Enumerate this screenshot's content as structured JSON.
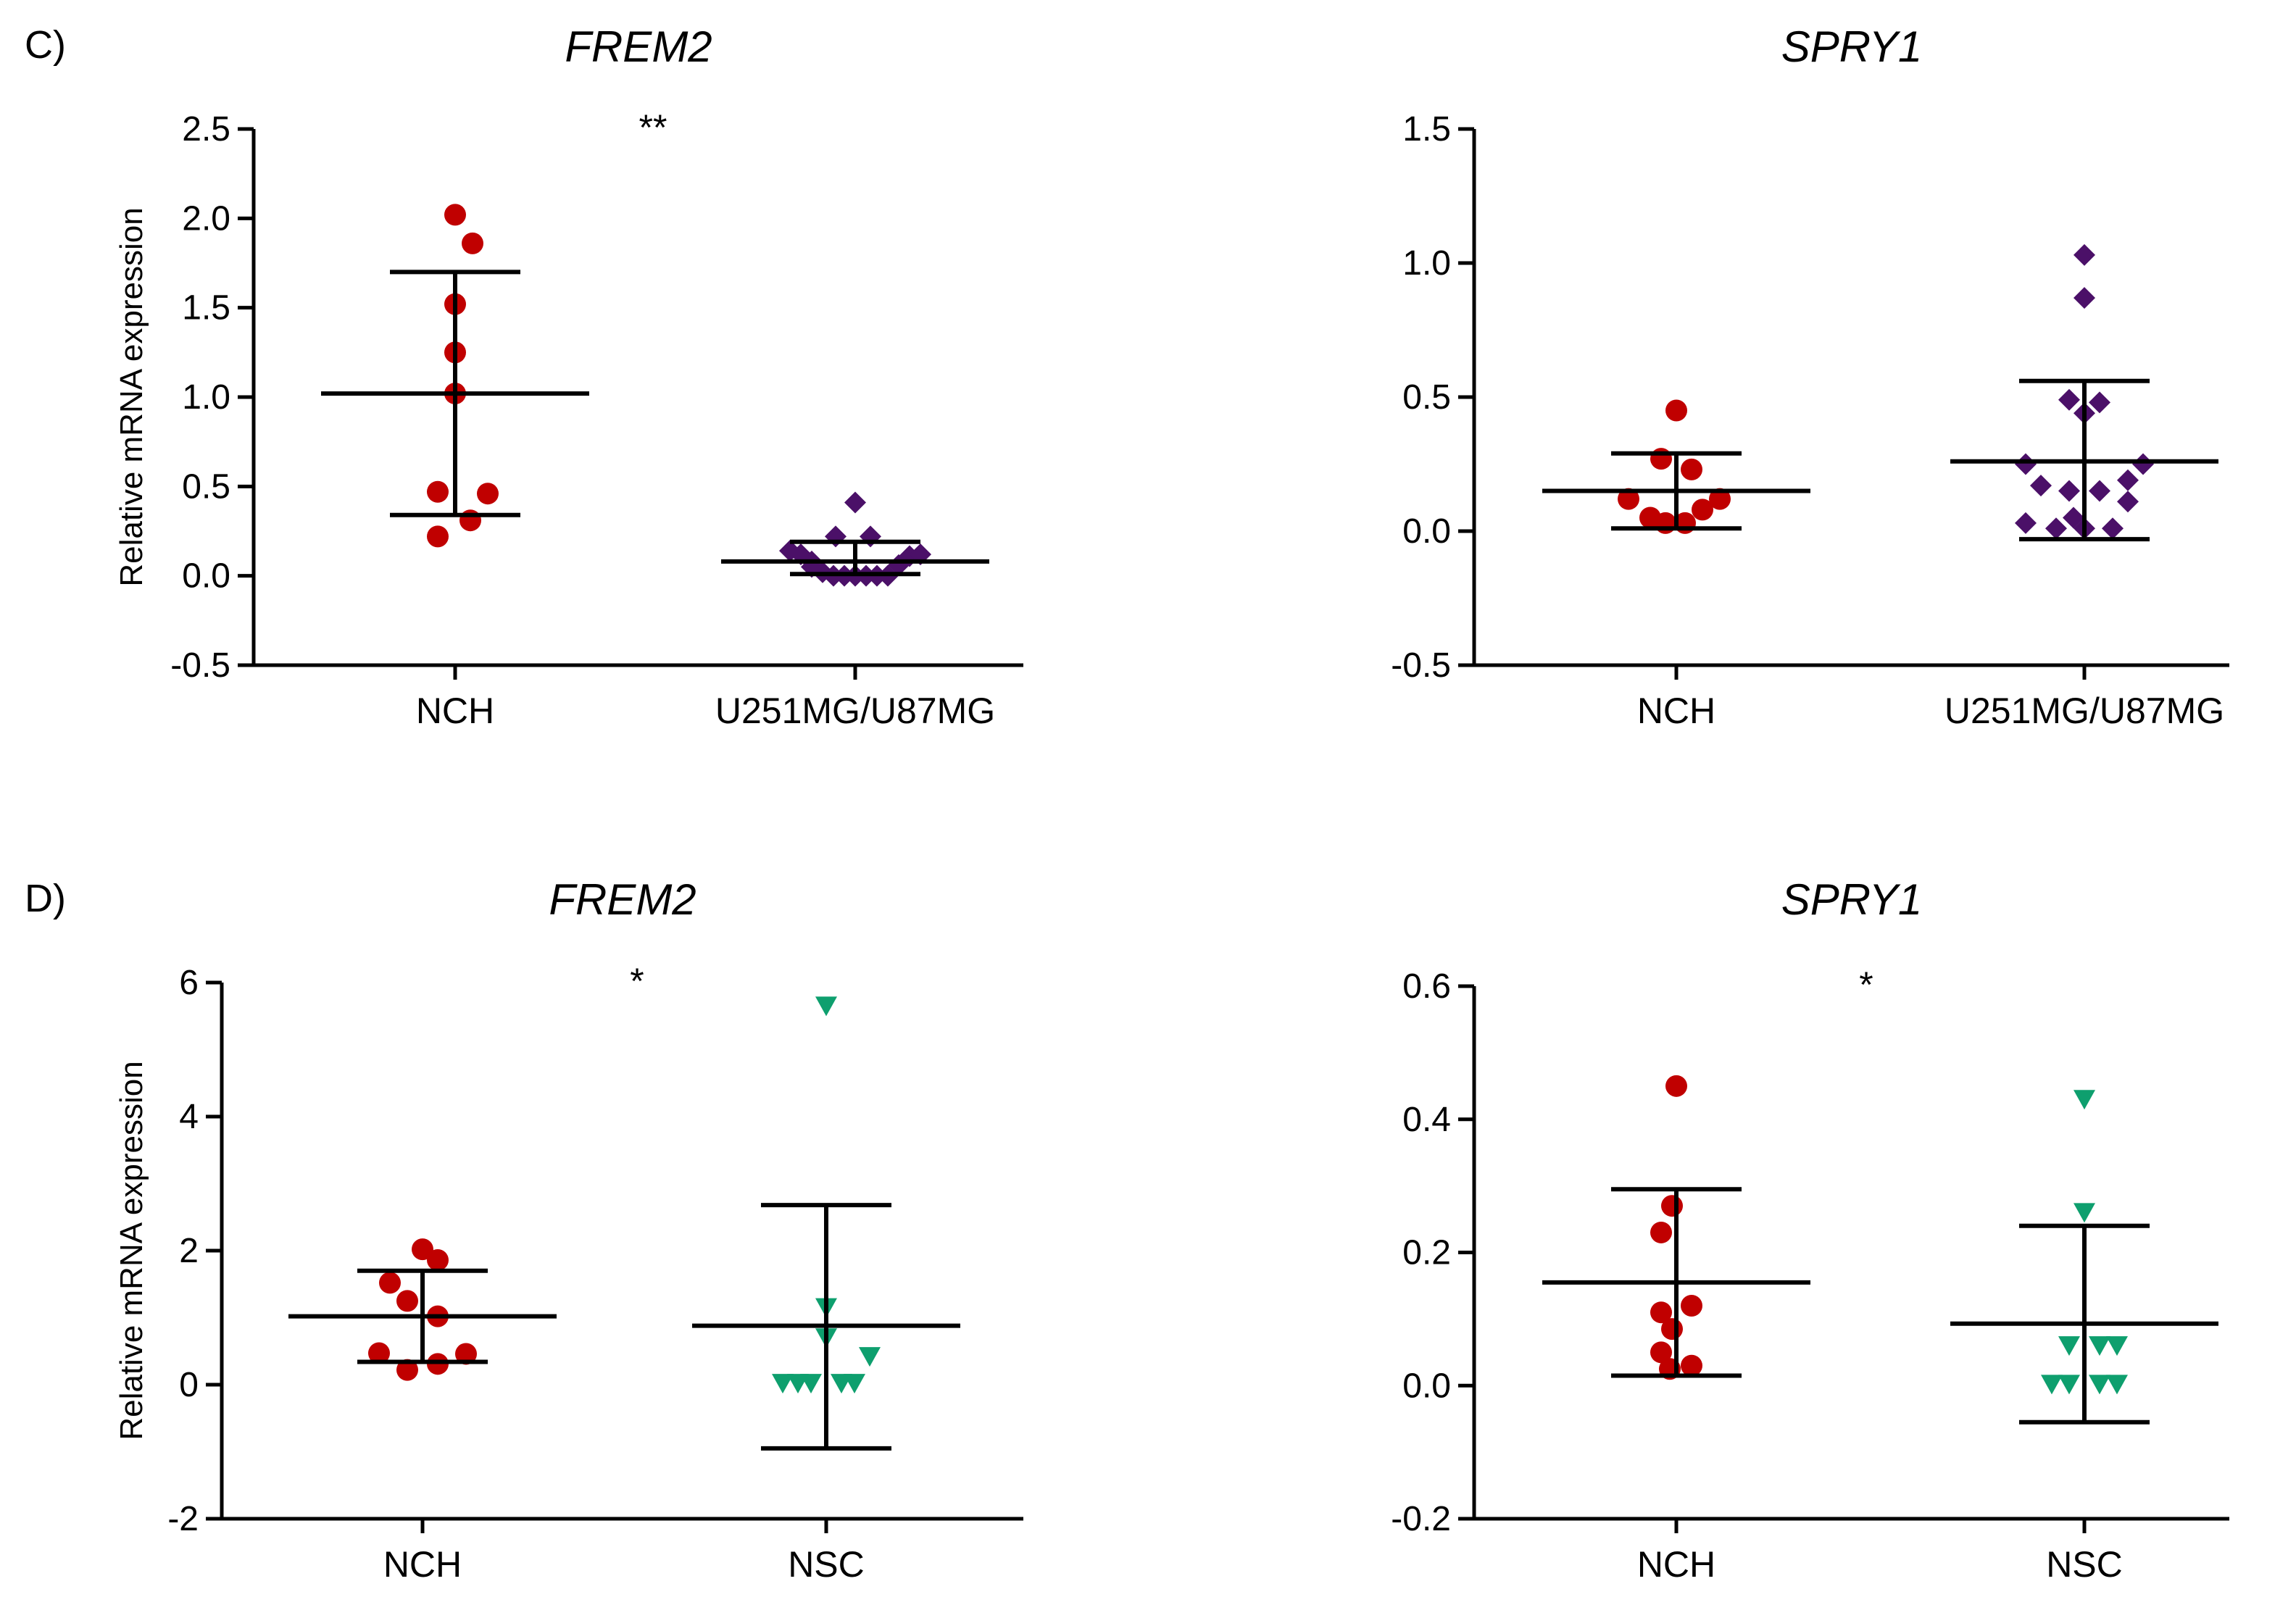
{
  "figure": {
    "panels": [
      "C)",
      "D)"
    ]
  },
  "colors": {
    "NCH": "#c00000",
    "U251MG/U87MG": "#4b1068",
    "NSC": "#0e9f6e",
    "axis": "#000000"
  },
  "chart_data": [
    {
      "type": "scatter",
      "panel": "C)",
      "title": "FREM2",
      "ylabel": "Relative mRNA expression",
      "ylim": [
        -0.5,
        2.5
      ],
      "yticks": [
        "-0.5",
        "0.0",
        "0.5",
        "1.0",
        "1.5",
        "2.0",
        "2.5"
      ],
      "categories": [
        "NCH",
        "U251MG/U87MG"
      ],
      "significance": "**",
      "series": [
        {
          "category": "NCH",
          "marker": "circle",
          "points": [
            [
              0,
              2.02
            ],
            [
              0.08,
              1.86
            ],
            [
              0,
              1.52
            ],
            [
              0,
              1.25
            ],
            [
              0,
              1.02
            ],
            [
              -0.08,
              0.47
            ],
            [
              0.15,
              0.46
            ],
            [
              0.07,
              0.31
            ],
            [
              -0.08,
              0.22
            ]
          ],
          "mean": 1.02,
          "sd_upper": 1.7,
          "sd_lower": 0.34
        },
        {
          "category": "U251MG/U87MG",
          "marker": "diamond",
          "points": [
            [
              0,
              0.41
            ],
            [
              -0.09,
              0.22
            ],
            [
              0.07,
              0.22
            ],
            [
              -0.3,
              0.14
            ],
            [
              -0.25,
              0.12
            ],
            [
              -0.2,
              0.08
            ],
            [
              -0.15,
              0.02
            ],
            [
              -0.1,
              0
            ],
            [
              -0.05,
              0
            ],
            [
              0,
              0
            ],
            [
              0.05,
              0
            ],
            [
              0.1,
              0
            ],
            [
              0.15,
              0
            ],
            [
              0.2,
              0.06
            ],
            [
              0.25,
              0.11
            ],
            [
              0.3,
              0.12
            ],
            [
              -0.2,
              0.05
            ]
          ],
          "mean": 0.08,
          "sd_upper": 0.19,
          "sd_lower": 0.01
        }
      ]
    },
    {
      "type": "scatter",
      "panel": "C)",
      "title": "SPRY1",
      "ylabel": "",
      "ylim": [
        -0.5,
        1.5
      ],
      "yticks": [
        "-0.5",
        "0.0",
        "0.5",
        "1.0",
        "1.5"
      ],
      "categories": [
        "NCH",
        "U251MG/U87MG"
      ],
      "significance": "",
      "series": [
        {
          "category": "NCH",
          "marker": "circle",
          "points": [
            [
              0,
              0.45
            ],
            [
              -0.07,
              0.27
            ],
            [
              0.07,
              0.23
            ],
            [
              -0.22,
              0.12
            ],
            [
              0.2,
              0.12
            ],
            [
              0.12,
              0.08
            ],
            [
              -0.12,
              0.05
            ],
            [
              -0.05,
              0.03
            ],
            [
              0.04,
              0.03
            ]
          ],
          "mean": 0.15,
          "sd_upper": 0.29,
          "sd_lower": 0.01
        },
        {
          "category": "U251MG/U87MG",
          "marker": "diamond",
          "points": [
            [
              0,
              1.03
            ],
            [
              0,
              0.87
            ],
            [
              -0.07,
              0.49
            ],
            [
              0.07,
              0.48
            ],
            [
              0,
              0.44
            ],
            [
              -0.27,
              0.25
            ],
            [
              0.27,
              0.25
            ],
            [
              0.2,
              0.19
            ],
            [
              -0.2,
              0.17
            ],
            [
              -0.07,
              0.15
            ],
            [
              0.07,
              0.15
            ],
            [
              0.2,
              0.11
            ],
            [
              -0.27,
              0.03
            ],
            [
              -0.13,
              0.01
            ],
            [
              0,
              0.01
            ],
            [
              0.13,
              0.01
            ],
            [
              -0.05,
              0.05
            ]
          ],
          "mean": 0.26,
          "sd_upper": 0.56,
          "sd_lower": -0.03
        }
      ]
    },
    {
      "type": "scatter",
      "panel": "D)",
      "title": "FREM2",
      "ylabel": "Relative mRNA expression",
      "ylim": [
        -2,
        6
      ],
      "yticks": [
        "-2",
        "0",
        "2",
        "4",
        "6"
      ],
      "categories": [
        "NCH",
        "NSC"
      ],
      "significance": "*",
      "series": [
        {
          "category": "NCH",
          "marker": "circle",
          "points": [
            [
              0,
              2.02
            ],
            [
              0.07,
              1.86
            ],
            [
              -0.15,
              1.52
            ],
            [
              -0.07,
              1.25
            ],
            [
              0.07,
              1.02
            ],
            [
              -0.2,
              0.47
            ],
            [
              0.2,
              0.46
            ],
            [
              0.07,
              0.31
            ],
            [
              -0.07,
              0.22
            ]
          ],
          "mean": 1.02,
          "sd_upper": 1.7,
          "sd_lower": 0.34
        },
        {
          "category": "NSC",
          "marker": "triangle-down",
          "points": [
            [
              0,
              5.65
            ],
            [
              0,
              1.15
            ],
            [
              0,
              0.7
            ],
            [
              0.2,
              0.42
            ],
            [
              -0.2,
              0.02
            ],
            [
              -0.13,
              0.02
            ],
            [
              -0.07,
              0.02
            ],
            [
              0.07,
              0.02
            ],
            [
              0.13,
              0.02
            ]
          ],
          "mean": 0.88,
          "sd_upper": 2.68,
          "sd_lower": -0.95
        }
      ]
    },
    {
      "type": "scatter",
      "panel": "D)",
      "title": "SPRY1",
      "ylabel": "",
      "ylim": [
        -0.2,
        0.6
      ],
      "yticks": [
        "-0.2",
        "0.0",
        "0.2",
        "0.4",
        "0.6"
      ],
      "categories": [
        "NCH",
        "NSC"
      ],
      "significance": "*",
      "series": [
        {
          "category": "NCH",
          "marker": "circle",
          "points": [
            [
              0,
              0.45
            ],
            [
              -0.02,
              0.27
            ],
            [
              -0.07,
              0.23
            ],
            [
              -0.07,
              0.11
            ],
            [
              0.07,
              0.12
            ],
            [
              -0.02,
              0.085
            ],
            [
              -0.07,
              0.05
            ],
            [
              0.07,
              0.03
            ],
            [
              -0.03,
              0.025
            ]
          ],
          "mean": 0.155,
          "sd_upper": 0.295,
          "sd_lower": 0.015
        },
        {
          "category": "NSC",
          "marker": "triangle-down",
          "points": [
            [
              0,
              0.43
            ],
            [
              0,
              0.26
            ],
            [
              -0.07,
              0.06
            ],
            [
              0.07,
              0.06
            ],
            [
              0.15,
              0.06
            ],
            [
              -0.15,
              0.002
            ],
            [
              -0.07,
              0.002
            ],
            [
              0.07,
              0.002
            ],
            [
              0.15,
              0.002
            ]
          ],
          "mean": 0.093,
          "sd_upper": 0.24,
          "sd_lower": -0.055
        }
      ]
    }
  ]
}
